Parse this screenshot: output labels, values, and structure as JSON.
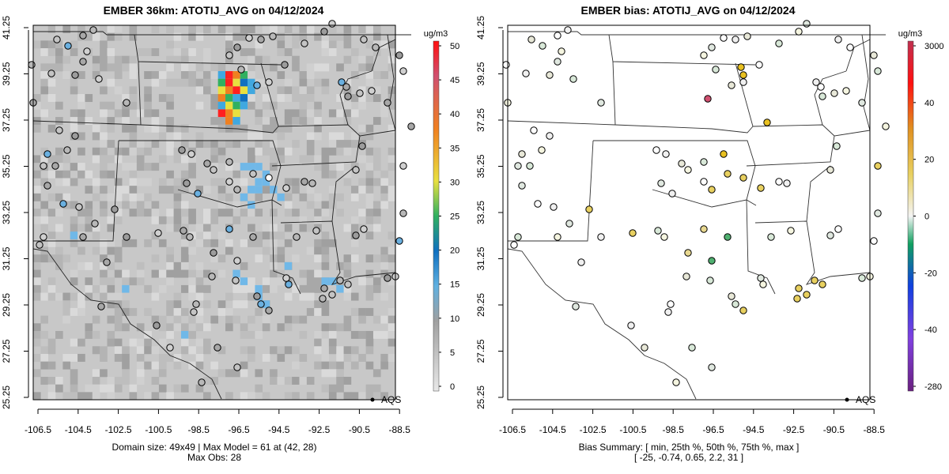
{
  "left": {
    "title": "EMBER 36km: ATOTIJ_AVG on 04/12/2024",
    "colorbar": {
      "unit": "ug/m3",
      "ticks": [
        "50",
        "45",
        "40",
        "35",
        "30",
        "25",
        "20",
        "15",
        "10",
        "5",
        "0"
      ]
    },
    "legend_label": "AQS",
    "footer": [
      "Domain size: 49x49 | Max Model = 61 at (42, 28)",
      "Max Obs: 28"
    ]
  },
  "right": {
    "title": "EMBER bias: ATOTIJ_AVG on 04/12/2024",
    "colorbar": {
      "unit": "ug/m3",
      "ticks": [
        "3000",
        "40",
        "20",
        "0",
        "-20",
        "-40",
        "-280"
      ]
    },
    "legend_label": "AQS",
    "footer": [
      "Bias Summary: [ min, 25th %, 50th %, 75th %, max ]",
      "[ -25,   -0.74,   0.65,   2.2,   31 ]"
    ]
  },
  "axes": {
    "x_ticks": [
      "-106.5",
      "-104.5",
      "-102.5",
      "-100.5",
      "-98.5",
      "-96.5",
      "-94.5",
      "-92.5",
      "-90.5",
      "-88.5"
    ],
    "y_ticks": [
      "25.25",
      "27.25",
      "29.25",
      "31.25",
      "33.25",
      "35.25",
      "37.25",
      "39.25",
      "41.25"
    ]
  },
  "colors": {
    "background_gray": "#c8c8c8",
    "hotspot": [
      "#ff2020",
      "#e8e040",
      "#f08020",
      "#30b060",
      "#1070c0",
      "#40a8e0"
    ]
  }
}
